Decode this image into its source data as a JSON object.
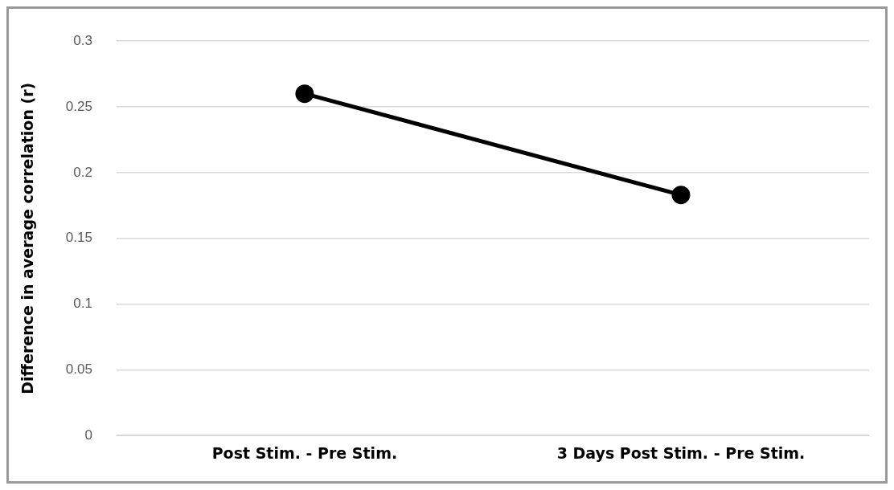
{
  "chart_data": {
    "type": "line",
    "ylabel": "Difference in average correlation (r)",
    "categories": [
      "Post Stim. - Pre Stim.",
      "3 Days Post Stim. - Pre Stim."
    ],
    "series": [
      {
        "color": "#000000",
        "values": [
          0.26,
          0.183
        ]
      }
    ],
    "ylim": [
      0,
      0.3
    ],
    "yticks": [
      0,
      0.05,
      0.1,
      0.15,
      0.2,
      0.25,
      0.3
    ],
    "grid": "y",
    "legend": false,
    "marker": "circle",
    "line_style": "solid"
  }
}
